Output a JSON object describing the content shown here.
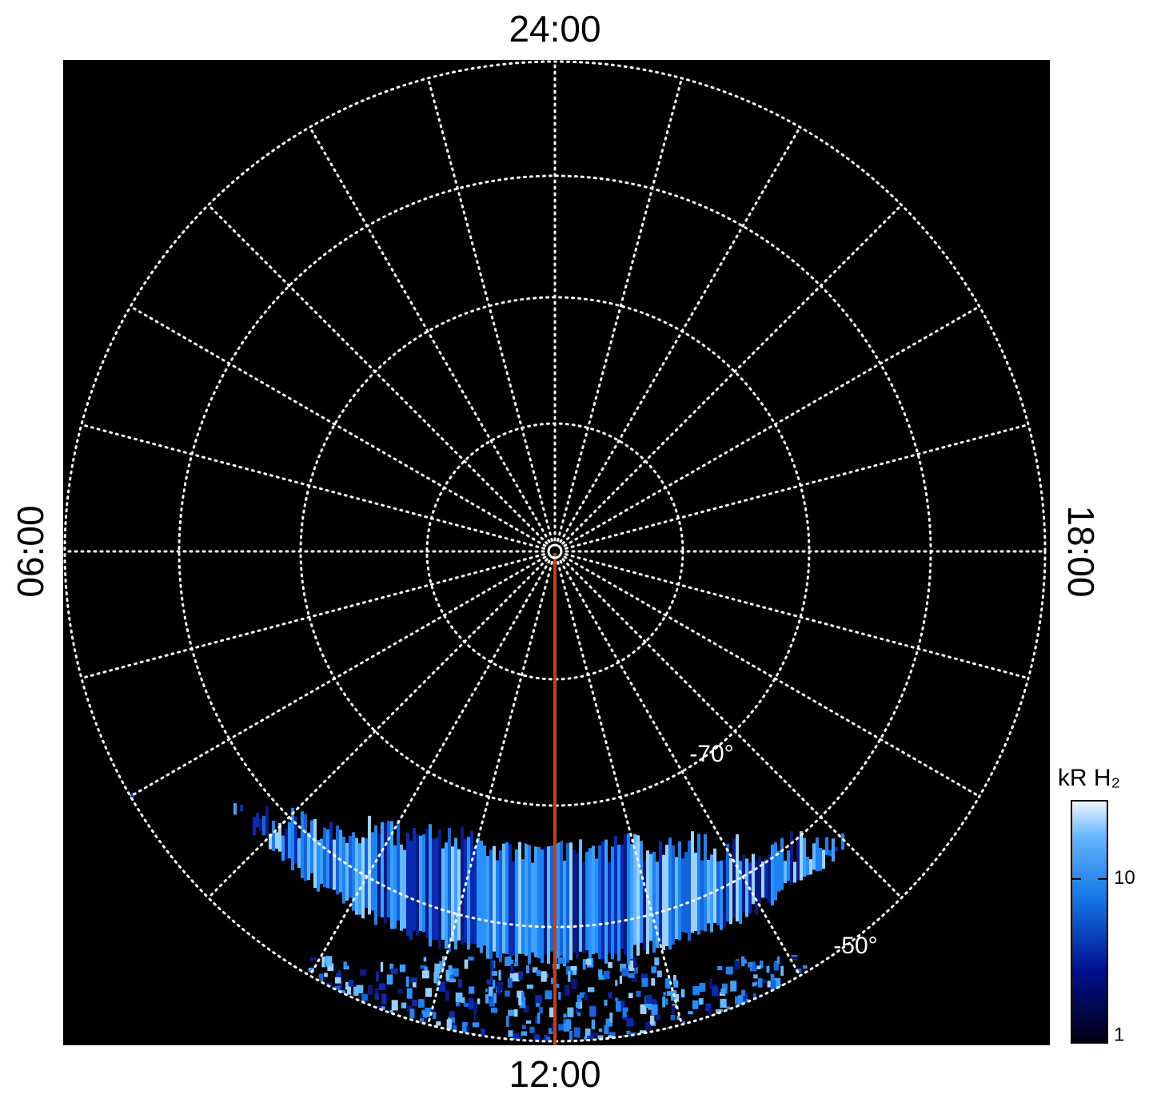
{
  "local_time_labels": {
    "top": "24:00",
    "bottom": "12:00",
    "left": "06:00",
    "right": "18:00"
  },
  "latitude_labels": [
    "-70°",
    "-50°"
  ],
  "colorbar": {
    "label": "kR H₂",
    "scale": "log",
    "range": [
      1,
      30
    ],
    "ticks": [
      1,
      10
    ]
  }
}
